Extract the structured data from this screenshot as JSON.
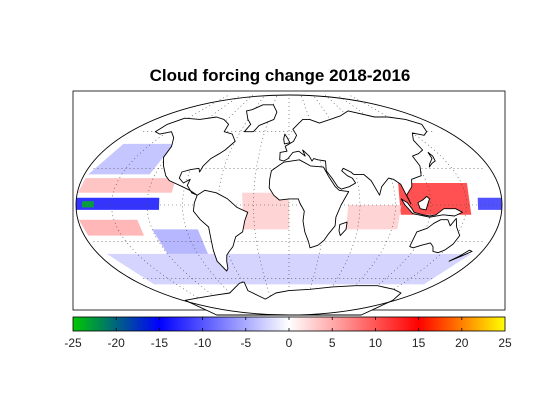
{
  "title": "Cloud forcing change 2018-2016",
  "colorbar": {
    "min": -25,
    "max": 25,
    "tick_labels": [
      "-25",
      "-20",
      "-15",
      "-10",
      "-5",
      "0",
      "5",
      "10",
      "15",
      "20",
      "25"
    ],
    "colormap": [
      "#00c800",
      "#0000ff",
      "#ffffff",
      "#ff0000",
      "#ffff00"
    ]
  },
  "map": {
    "projection": "Robinson",
    "graticule_style": "dotted"
  },
  "chart_data": {
    "type": "heatmap",
    "title": "Cloud forcing change 2018-2016",
    "xlabel": "",
    "ylabel": "",
    "value_range": [
      -25,
      25
    ],
    "colorbar_ticks": [
      -25,
      -20,
      -15,
      -10,
      -5,
      0,
      5,
      10,
      15,
      20,
      25
    ],
    "anomalies": [
      {
        "region": "Equatorial eastern Pacific",
        "lon": [
          -180,
          -110
        ],
        "lat": [
          -4,
          6
        ],
        "value": -14
      },
      {
        "region": "Equatorial far-eastern Pacific",
        "lon": [
          -175,
          -165
        ],
        "lat": [
          -2,
          3
        ],
        "value": -24
      },
      {
        "region": "Western Pacific / Maritime Continent",
        "lon": [
          95,
          155
        ],
        "lat": [
          -8,
          18
        ],
        "value": 12
      },
      {
        "region": "Northeast tropical Pacific",
        "lon": [
          -180,
          -100
        ],
        "lat": [
          10,
          22
        ],
        "value": 4
      },
      {
        "region": "South tropical Pacific",
        "lon": [
          -180,
          -130
        ],
        "lat": [
          -25,
          -12
        ],
        "value": 5
      },
      {
        "region": "Central equatorial Pacific (west)",
        "lon": [
          160,
          180
        ],
        "lat": [
          -4,
          6
        ],
        "value": -12
      },
      {
        "region": "Tropical Atlantic",
        "lon": [
          -40,
          0
        ],
        "lat": [
          -20,
          10
        ],
        "value": 3
      },
      {
        "region": "Indian Ocean",
        "lon": [
          50,
          95
        ],
        "lat": [
          -20,
          0
        ],
        "value": 3
      },
      {
        "region": "North Pacific",
        "lon": [
          -180,
          -125
        ],
        "lat": [
          25,
          50
        ],
        "value": -4
      },
      {
        "region": "Southern Ocean",
        "lon": [
          -180,
          180
        ],
        "lat": [
          -65,
          -40
        ],
        "value": -3
      },
      {
        "region": "South Pacific subtropics",
        "lon": [
          -120,
          -80
        ],
        "lat": [
          -40,
          -20
        ],
        "value": -5
      }
    ]
  }
}
